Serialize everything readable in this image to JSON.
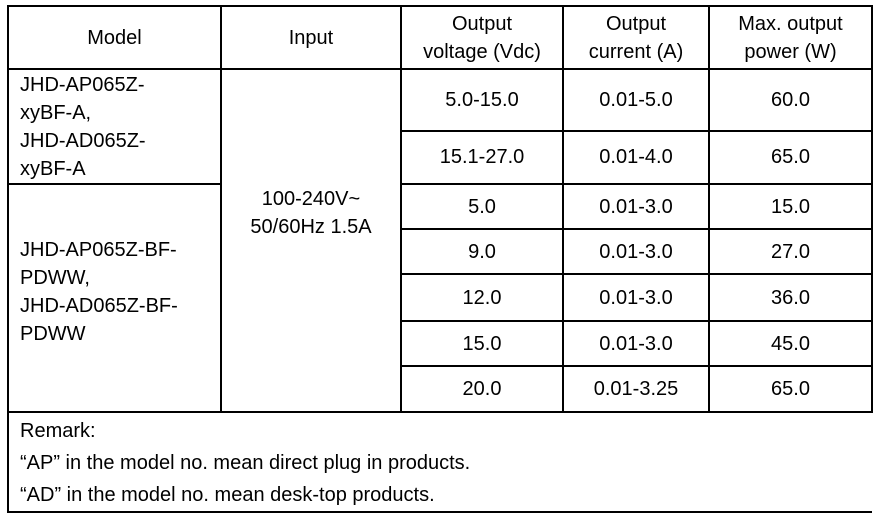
{
  "headers": {
    "model": "Model",
    "input": "Input",
    "voltage": [
      "Output",
      "voltage (Vdc)"
    ],
    "current": [
      "Output",
      "current (A)"
    ],
    "power": [
      "Max. output",
      "power (W)"
    ]
  },
  "input": [
    "100-240V~",
    "50/60Hz 1.5A"
  ],
  "groups": [
    {
      "model": [
        "JHD-AP065Z-",
        "xyBF-A,",
        "JHD-AD065Z-",
        "xyBF-A"
      ]
    },
    {
      "model": [
        "JHD-AP065Z-BF-",
        "PDWW,",
        "JHD-AD065Z-BF-",
        "PDWW"
      ]
    }
  ],
  "rows": [
    {
      "voltage": "5.0-15.0",
      "current": "0.01-5.0",
      "power": "60.0"
    },
    {
      "voltage": "15.1-27.0",
      "current": "0.01-4.0",
      "power": "65.0"
    },
    {
      "voltage": "5.0",
      "current": "0.01-3.0",
      "power": "15.0"
    },
    {
      "voltage": "9.0",
      "current": "0.01-3.0",
      "power": "27.0"
    },
    {
      "voltage": "12.0",
      "current": "0.01-3.0",
      "power": "36.0"
    },
    {
      "voltage": "15.0",
      "current": "0.01-3.0",
      "power": "45.0"
    },
    {
      "voltage": "20.0",
      "current": "0.01-3.25",
      "power": "65.0"
    }
  ],
  "remark": [
    "Remark:",
    "“AP” in the model no. mean direct plug in products.",
    "“AD” in the model no. mean desk-top products."
  ]
}
